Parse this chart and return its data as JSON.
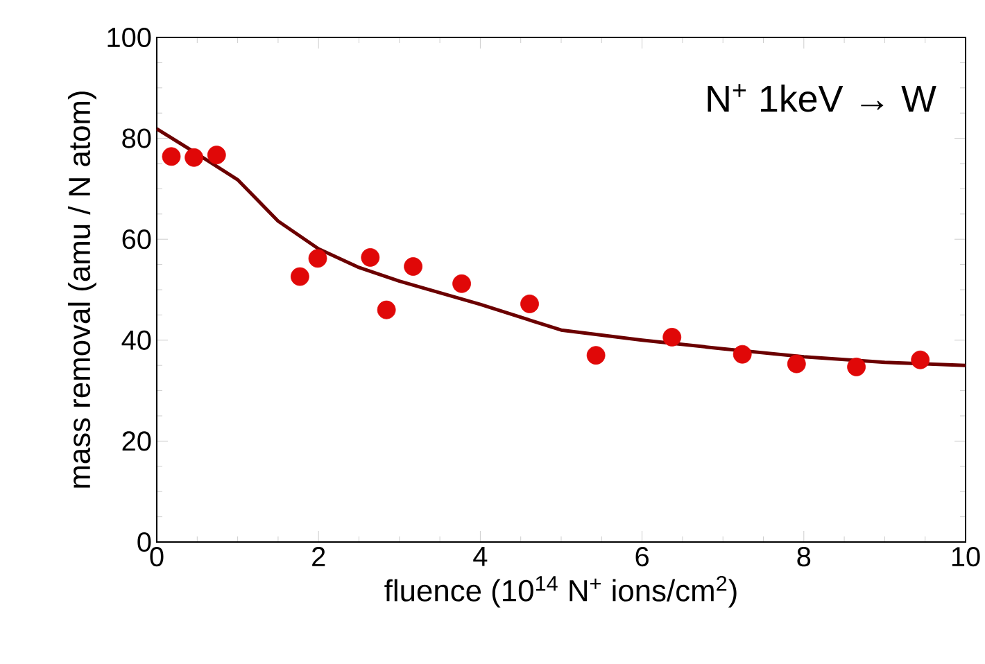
{
  "chart_data": {
    "type": "scatter",
    "xlabel": "fluence (10$^{14}$ N$^{+}$ ions/cm$^{2}$)",
    "ylabel": "mass removal (amu / N atom)",
    "annotations": [
      "N$^{+}$ 1keV → W"
    ],
    "xlim": [
      0,
      10
    ],
    "ylim": [
      0,
      100
    ],
    "xticks": [
      0,
      2,
      4,
      6,
      8,
      10
    ],
    "yticks": [
      0,
      20,
      40,
      60,
      80,
      100
    ],
    "series": [
      {
        "type": "line",
        "color": "#6b0000",
        "marker": "none",
        "x": [
          0,
          0.5,
          1,
          1.5,
          2,
          2.5,
          3,
          4,
          5,
          6,
          7,
          8,
          9,
          10
        ],
        "values": [
          81.9,
          76.9,
          71.8,
          63.6,
          58.1,
          54.4,
          51.7,
          47.1,
          42.0,
          40.0,
          38.3,
          36.7,
          35.6,
          35.0
        ]
      },
      {
        "color": "#e00808",
        "x": [
          0.18,
          0.46,
          0.74,
          1.77,
          1.99,
          2.64,
          2.84,
          3.17,
          3.77,
          4.61,
          5.43,
          6.37,
          7.24,
          7.91,
          8.65,
          9.44
        ],
        "values": [
          76.4,
          76.2,
          76.7,
          52.6,
          56.2,
          56.4,
          46.0,
          54.6,
          51.2,
          47.2,
          37.0,
          40.6,
          37.2,
          35.3,
          34.7,
          36.1
        ]
      }
    ]
  }
}
